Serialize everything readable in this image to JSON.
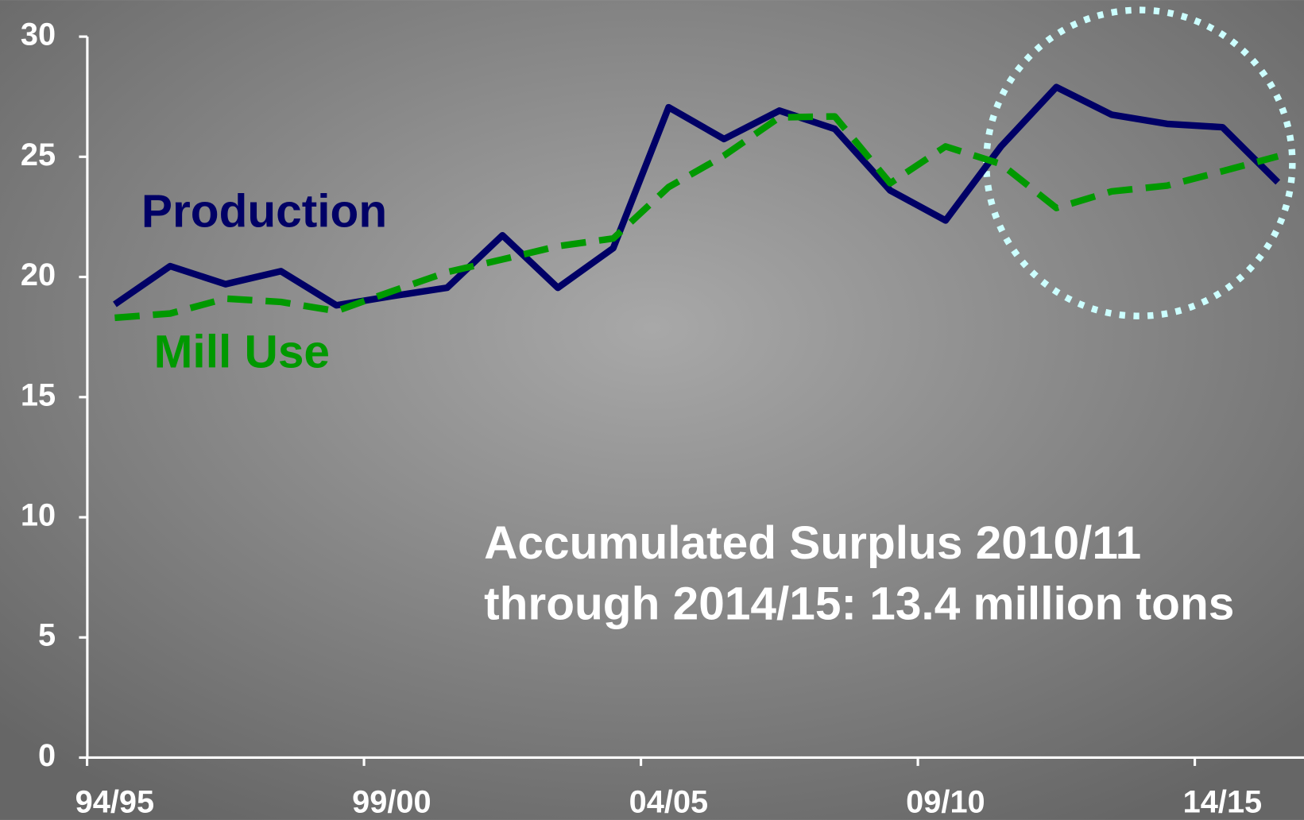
{
  "chart_data": {
    "type": "line",
    "categories": [
      "94/95",
      null,
      null,
      null,
      null,
      "99/00",
      null,
      null,
      null,
      null,
      "04/05",
      null,
      null,
      null,
      null,
      "09/10",
      null,
      null,
      null,
      null,
      "14/15",
      null
    ],
    "series": [
      {
        "name": "Production",
        "color": "#000066",
        "values": [
          18.86,
          20.45,
          19.7,
          20.24,
          18.82,
          19.2,
          19.55,
          21.73,
          19.55,
          21.2,
          27.06,
          25.74,
          26.92,
          26.16,
          23.6,
          22.35,
          25.43,
          27.9,
          26.75,
          26.37,
          26.23,
          23.94
        ]
      },
      {
        "name": "Mill Use",
        "color": "#009900",
        "dashed": true,
        "values": [
          18.3,
          18.48,
          19.1,
          18.96,
          18.58,
          19.4,
          20.2,
          20.73,
          21.28,
          21.6,
          23.74,
          25.05,
          26.64,
          26.68,
          23.9,
          25.43,
          24.7,
          22.87,
          23.56,
          23.8,
          24.4,
          25.02
        ]
      }
    ],
    "ylim": [
      0,
      30
    ],
    "yticks": [
      0,
      5,
      10,
      15,
      20,
      25,
      30
    ],
    "annotations": [
      "Accumulated Surplus 2010/11",
      "through 2014/15: 13.4 million tons"
    ]
  }
}
